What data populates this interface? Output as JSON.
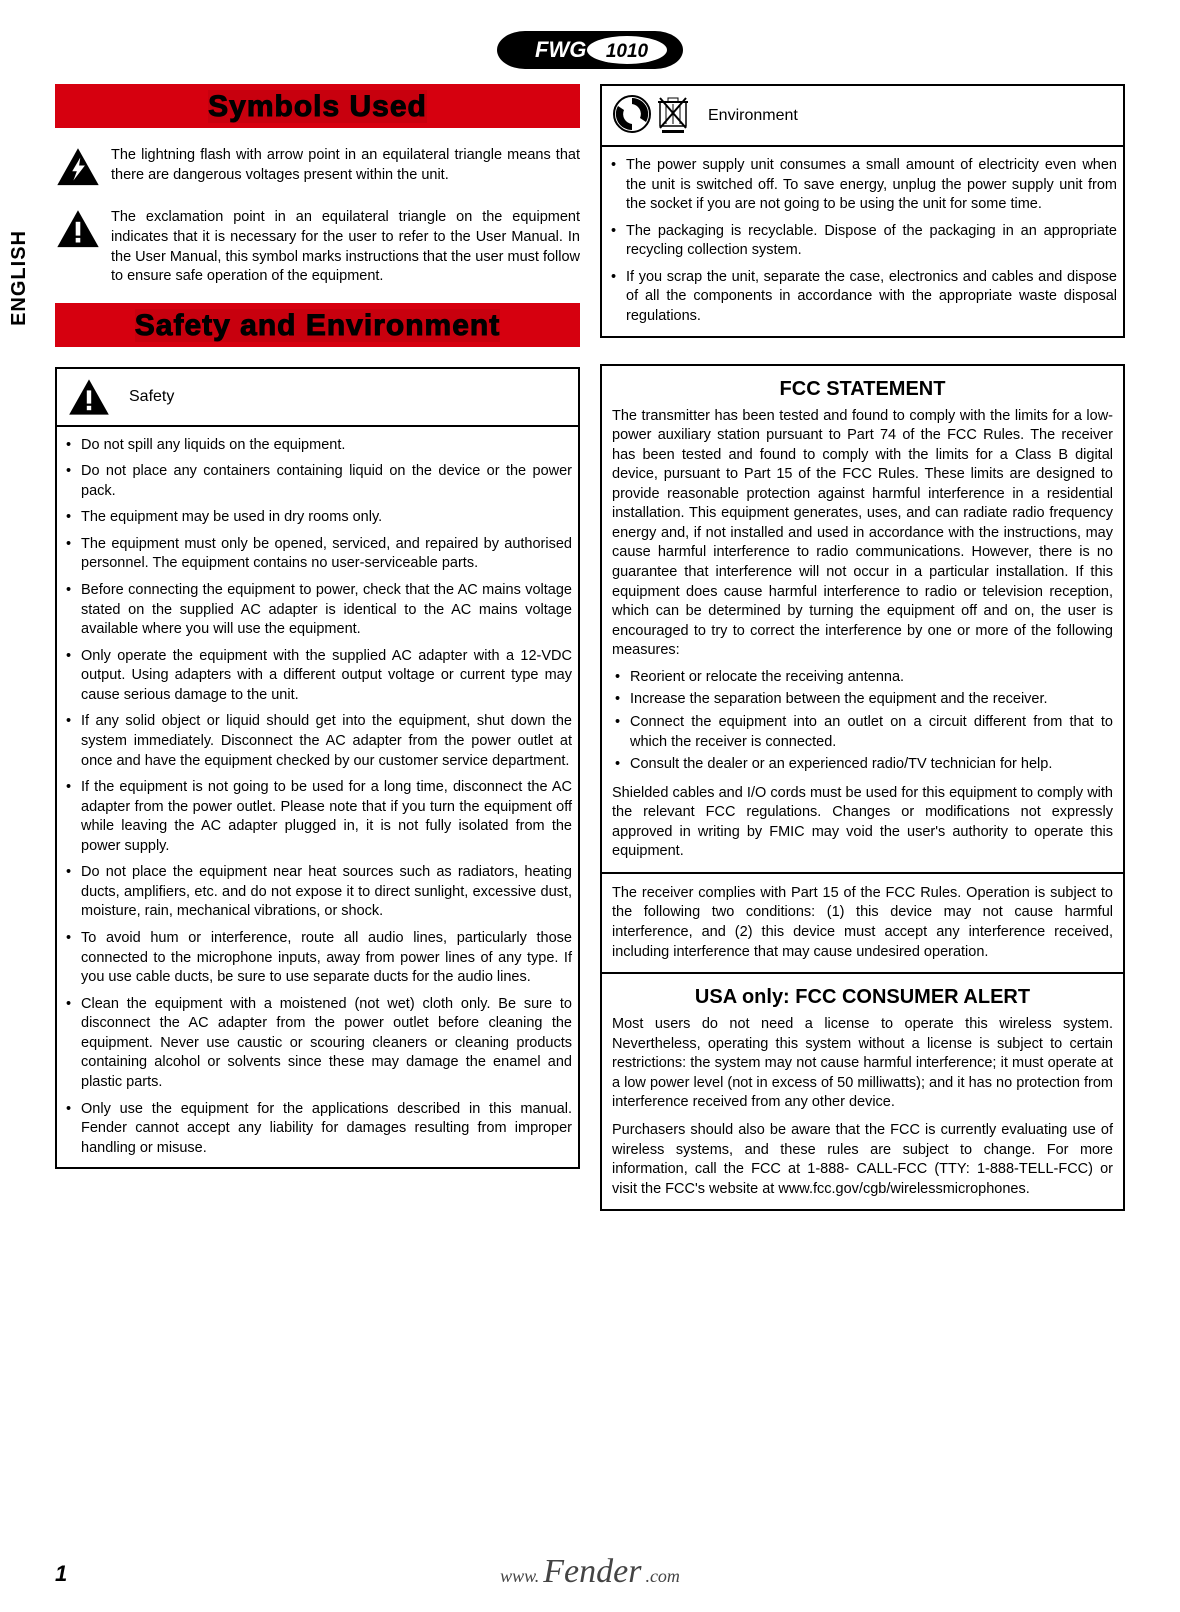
{
  "header": {
    "model": "FWG",
    "model_num": "1010"
  },
  "side_label": "ENGLISH",
  "symbols_used": {
    "heading": "Symbols Used",
    "lightning": "The lightning flash with arrow point in an equilateral triangle means that there are dangerous voltages present within the unit.",
    "exclaim": "The exclamation point in an equilateral triangle on the equipment indicates that it is necessary for the user to refer to the User Manual. In the User Manual, this symbol marks instructions that the user must follow to ensure safe operation of the equipment."
  },
  "safety_env": {
    "heading": "Safety and Environment",
    "safety_label": "Safety",
    "env_label": "Environment",
    "safety_items": [
      "Do not spill any liquids on the equipment.",
      "Do not place any containers containing liquid on the device or the power pack.",
      "The equipment may be used in dry rooms only.",
      "The equipment must only be opened, serviced, and repaired by authorised personnel. The equipment contains no user-serviceable parts.",
      "Before connecting the equipment to power, check that the AC mains voltage stated on the supplied AC adapter is identical to the AC mains voltage available where you will use the equipment.",
      "Only operate the equipment with the supplied AC adapter with a 12-VDC output. Using adapters with a different output voltage or current type may cause serious damage to the unit.",
      "If any solid object or liquid should get into the equipment, shut down the system immediately. Disconnect the AC adapter from the power outlet at once and have the equipment checked by our customer service department.",
      "If the equipment is not going to be used for a long time, disconnect the AC adapter from the power outlet. Please note that if you turn the equipment off while leaving the AC adapter plugged in, it is not fully isolated from the power supply.",
      "Do not place the equipment near heat sources such as radiators, heating ducts, amplifiers, etc. and do not expose it to direct sunlight, excessive dust, moisture, rain, mechanical vibrations, or shock.",
      "To avoid hum or interference, route all audio lines, particularly those connected to the microphone inputs, away from power lines of any type. If you use cable ducts, be sure to use separate ducts for the audio lines.",
      "Clean the equipment with a moistened (not wet) cloth only. Be sure to disconnect the AC adapter from the power outlet before cleaning the equipment. Never use caustic or scouring cleaners or cleaning products containing alcohol or solvents since these may damage the enamel and plastic parts.",
      "Only use the equipment for the applications described in this manual. Fender cannot accept any liability for damages resulting from improper handling or misuse."
    ],
    "env_items": [
      "The power supply unit consumes a small amount of electricity even when the unit is switched off. To save energy, unplug the power supply unit from the socket if you are not going to be using the unit for some time.",
      "The packaging is recyclable. Dispose of the packaging in an appropriate recycling collection system.",
      "If you scrap the unit, separate the case, electronics and cables and dispose of all the components in accordance with the appropriate waste disposal regulations."
    ]
  },
  "fcc": {
    "title": "FCC STATEMENT",
    "body1": "The transmitter has been tested and found to comply with the limits for a low-power auxiliary station pursuant to Part 74 of the FCC Rules. The receiver has been tested and found to comply with the limits for a Class B digital device, pursuant to Part 15 of the FCC Rules. These limits are designed to provide reasonable protection against harmful interference in a residential installation. This equipment generates, uses, and can radiate radio frequency energy and, if not installed and used   in accordance with the instructions, may cause harmful interference to radio communications. However, there is no guarantee that interference will not occur in a particular installation. If this equipment does cause harmful interference to radio or television reception, which can be determined by turning the equipment off and on, the user is encouraged to try to correct the interference by one or more of the following measures:",
    "measures": [
      "Reorient or relocate the receiving antenna.",
      "Increase the separation between the equipment and the receiver.",
      "Connect the equipment into an outlet on a circuit different from that to which the receiver is connected.",
      "Consult the dealer or an experienced radio/TV technician for help."
    ],
    "body2": "Shielded cables and I/O cords must be used for this equipment to comply with the relevant FCC regulations. Changes or modifications not expressly approved in writing by FMIC may void the user's authority to operate this equipment.",
    "body3": "The receiver complies with Part 15 of the FCC Rules. Operation is subject to the following two conditions: (1) this device may not cause harmful interference, and (2) this device must accept any interference received, including interference that may cause undesired operation.",
    "alert_title": "USA only: FCC CONSUMER ALERT",
    "alert1": "Most users do not need a license to operate this wireless system. Nevertheless, operating this system without a license is subject to certain restrictions: the system may not cause harmful interference; it must operate at a low power level (not in excess of 50 milliwatts); and it has no protection from interference received from any other device.",
    "alert2": "Purchasers should also be aware that the FCC is currently evaluating use of wireless systems, and these rules are subject to change. For more information, call the FCC at 1-888- CALL-FCC (TTY: 1-888-TELL-FCC) or visit the FCC's website at www.fcc.gov/cgb/wirelessmicrophones."
  },
  "footer": {
    "page": "1",
    "url_prefix": "www.",
    "brand": "Fender",
    "url_suffix": ".com"
  },
  "colors": {
    "red": "#d6000f",
    "text": "#000000",
    "bg": "#ffffff"
  },
  "icons": {
    "lightning": "lightning-triangle-icon",
    "exclaim": "exclaim-triangle-icon",
    "recycle": "recycle-icon",
    "weee": "weee-bin-icon"
  }
}
